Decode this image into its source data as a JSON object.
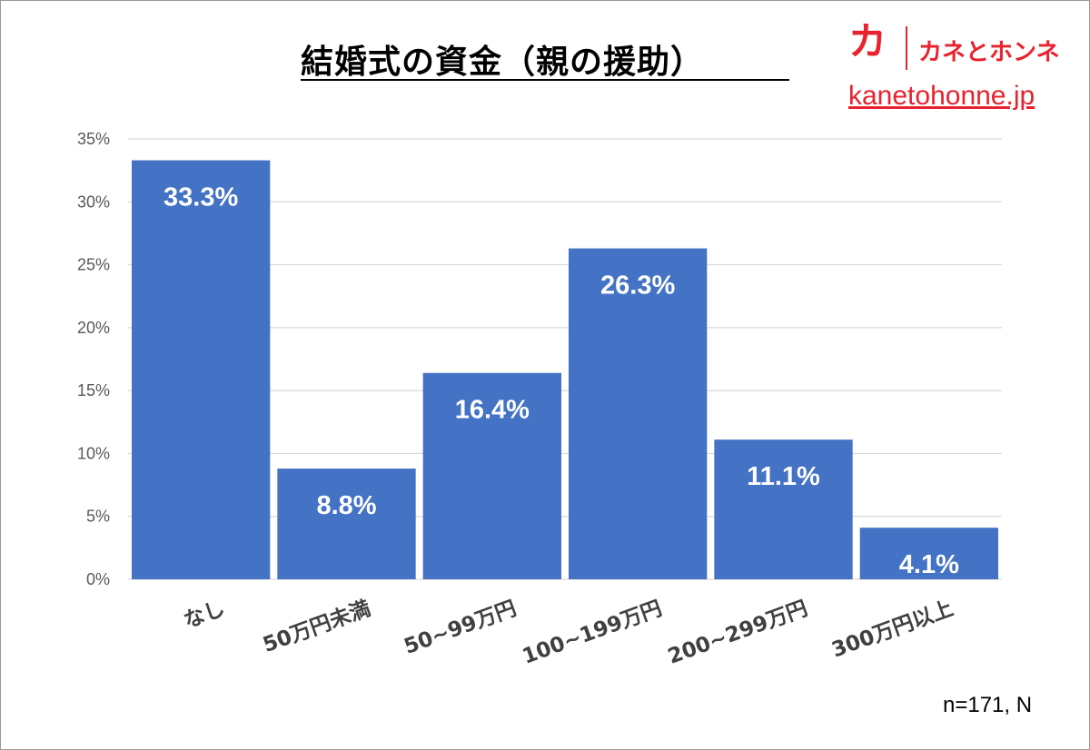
{
  "title": "結婚式の資金（親の援助）",
  "logo": {
    "mark": "カ",
    "brand": "カネとホンネ",
    "url": "kanetohonne.jp",
    "color": "#e8222e"
  },
  "note": "n=171, N",
  "colors": {
    "bar": "#4472c4",
    "grid": "#d9d9d9",
    "axis_text": "#595959",
    "category_text": "#404040",
    "value_label": "#ffffff"
  },
  "chart_data": {
    "type": "bar",
    "title": "結婚式の資金（親の援助）",
    "categories": [
      "なし",
      "50万円未満",
      "50~99万円",
      "100~199万円",
      "200~299万円",
      "300万円以上"
    ],
    "values": [
      33.3,
      8.8,
      16.4,
      26.3,
      11.1,
      4.1
    ],
    "value_labels": [
      "33.3%",
      "8.8%",
      "16.4%",
      "26.3%",
      "11.1%",
      "4.1%"
    ],
    "unit": "%",
    "xlabel": "",
    "ylabel": "",
    "ylim": [
      0,
      35
    ],
    "yticks": [
      0,
      5,
      10,
      15,
      20,
      25,
      30,
      35
    ],
    "ytick_labels": [
      "0%",
      "5%",
      "10%",
      "15%",
      "20%",
      "25%",
      "30%",
      "35%"
    ],
    "grid": true,
    "legend": "none"
  }
}
